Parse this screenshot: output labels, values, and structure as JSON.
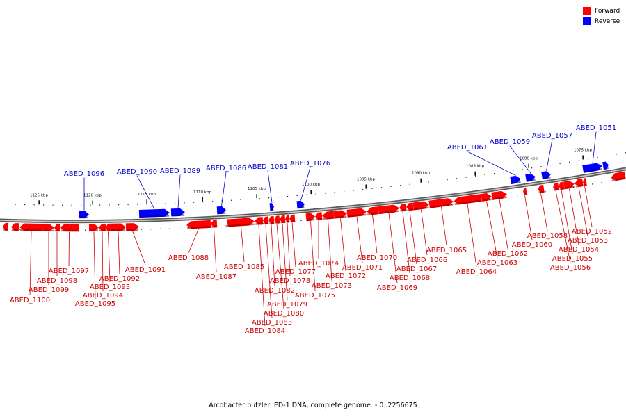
{
  "caption": "Arcobacter butzleri ED-1 DNA, complete genome. - 0..2256675",
  "legend": [
    {
      "label": "Forward",
      "color": "#ff0000"
    },
    {
      "label": "Reverse",
      "color": "#0000ff"
    }
  ],
  "colors": {
    "forward": "#ff0000",
    "reverse": "#0000ff",
    "forward_label": "#cc0000",
    "reverse_label": "#0000cc",
    "backbone": "#8c8c8c"
  },
  "scale_labels": [
    "1125 kbp",
    "1120 kbp",
    "1115 kbp",
    "1110 kbp",
    "1105 kbp",
    "1100 kbp",
    "1095 kbp",
    "1090 kbp",
    "1085 kbp",
    "1080 kbp",
    "1075 kbp"
  ],
  "reverse_genes": [
    "ABED_1096",
    "ABED_1090",
    "ABED_1089",
    "ABED_1086",
    "ABED_1081",
    "ABED_1076",
    "ABED_1061",
    "ABED_1059",
    "ABED_1057",
    "ABED_1051"
  ],
  "forward_genes": [
    "ABED_1100",
    "ABED_1099",
    "ABED_1098",
    "ABED_1097",
    "ABED_1095",
    "ABED_1094",
    "ABED_1093",
    "ABED_1092",
    "ABED_1091",
    "ABED_1088",
    "ABED_1087",
    "ABED_1085",
    "ABED_1084",
    "ABED_1083",
    "ABED_1082",
    "ABED_1080",
    "ABED_1079",
    "ABED_1078",
    "ABED_1077",
    "ABED_1075",
    "ABED_1074",
    "ABED_1073",
    "ABED_1072",
    "ABED_1071",
    "ABED_1070",
    "ABED_1069",
    "ABED_1068",
    "ABED_1067",
    "ABED_1066",
    "ABED_1065",
    "ABED_1064",
    "ABED_1063",
    "ABED_1062",
    "ABED_1060",
    "ABED_1058",
    "ABED_1056",
    "ABED_1055",
    "ABED_1054",
    "ABED_1053",
    "ABED_1052"
  ]
}
